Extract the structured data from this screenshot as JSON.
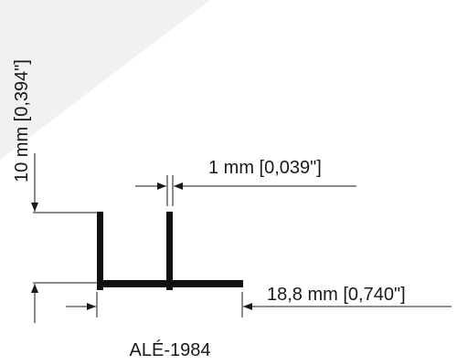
{
  "colors": {
    "background": "#ffffff",
    "corner_shade": "#f1f1f1",
    "profile": "#111111",
    "dimension_lines": "#1a1a1a"
  },
  "dimensions": {
    "height": "10 mm [0,394\"]",
    "thickness": "1 mm [0,039\"]",
    "width": "18,8 mm [0,740\"]"
  },
  "product_code": "ALÉ-1984"
}
